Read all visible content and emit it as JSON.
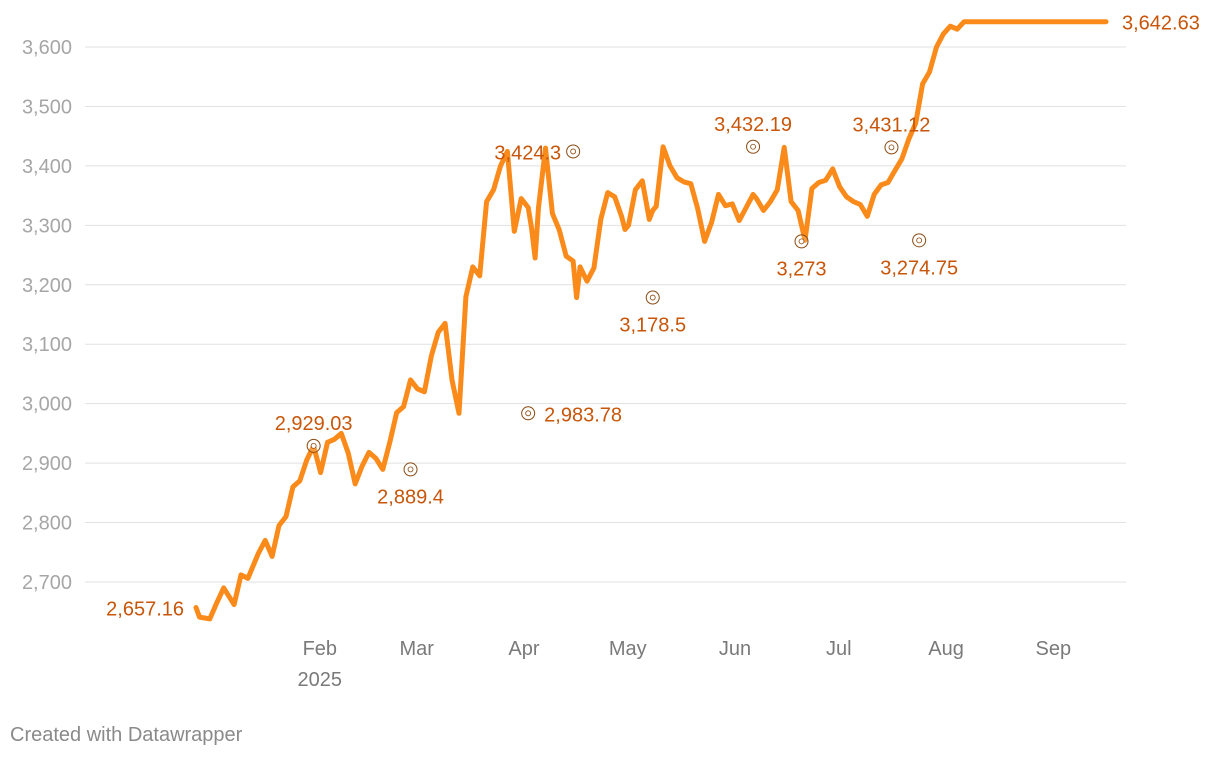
{
  "chart_data": {
    "type": "line",
    "title": "",
    "xlabel": "",
    "ylabel": "",
    "ylim": [
      2620,
      3660
    ],
    "grid": "horizontal",
    "line_color": "#fa8a1a",
    "annotation_color": "#c8560a",
    "y_ticks": [
      2700,
      2800,
      2900,
      3000,
      3100,
      3200,
      3300,
      3400,
      3500,
      3600
    ],
    "y_tick_labels": [
      "2,700",
      "2,800",
      "2,900",
      "3,000",
      "3,100",
      "3,200",
      "3,300",
      "3,400",
      "3,500",
      "3,600"
    ],
    "x_ticks": [
      {
        "date": "2025-02-01",
        "label": "Feb",
        "sublabel": "2025"
      },
      {
        "date": "2025-03-01",
        "label": "Mar",
        "sublabel": ""
      },
      {
        "date": "2025-04-01",
        "label": "Apr",
        "sublabel": ""
      },
      {
        "date": "2025-05-01",
        "label": "May",
        "sublabel": ""
      },
      {
        "date": "2025-06-01",
        "label": "Jun",
        "sublabel": ""
      },
      {
        "date": "2025-07-01",
        "label": "Jul",
        "sublabel": ""
      },
      {
        "date": "2025-08-01",
        "label": "Aug",
        "sublabel": ""
      },
      {
        "date": "2025-09-01",
        "label": "Sep",
        "sublabel": ""
      }
    ],
    "x_range": [
      "2025-01-02",
      "2025-09-22"
    ],
    "series": [
      {
        "x": [
          "2025-01-02",
          "2025-01-03",
          "2025-01-06",
          "2025-01-08",
          "2025-01-10",
          "2025-01-13",
          "2025-01-15",
          "2025-01-17",
          "2025-01-20",
          "2025-01-22",
          "2025-01-24",
          "2025-01-26",
          "2025-01-28",
          "2025-01-30",
          "2025-02-01",
          "2025-02-03",
          "2025-02-05",
          "2025-02-07",
          "2025-02-09",
          "2025-02-11",
          "2025-02-13",
          "2025-02-15",
          "2025-02-17",
          "2025-02-19",
          "2025-02-21",
          "2025-02-23",
          "2025-02-25",
          "2025-02-27",
          "2025-03-01",
          "2025-03-03",
          "2025-03-05",
          "2025-03-07",
          "2025-03-09",
          "2025-03-11",
          "2025-03-13",
          "2025-03-15",
          "2025-03-17",
          "2025-03-19",
          "2025-03-21",
          "2025-03-23",
          "2025-03-25",
          "2025-03-27",
          "2025-03-29",
          "2025-03-31",
          "2025-04-02",
          "2025-04-04",
          "2025-04-06",
          "2025-04-08",
          "2025-04-09",
          "2025-04-10",
          "2025-04-11",
          "2025-04-13",
          "2025-04-15",
          "2025-04-17",
          "2025-04-19",
          "2025-04-21",
          "2025-04-22",
          "2025-04-23",
          "2025-04-25",
          "2025-04-27",
          "2025-04-29",
          "2025-05-01",
          "2025-05-03",
          "2025-05-05",
          "2025-05-06",
          "2025-05-07",
          "2025-05-09",
          "2025-05-11",
          "2025-05-13",
          "2025-05-14",
          "2025-05-15",
          "2025-05-17",
          "2025-05-19",
          "2025-05-21",
          "2025-05-23",
          "2025-05-25",
          "2025-05-27",
          "2025-05-29",
          "2025-05-31",
          "2025-06-02",
          "2025-06-04",
          "2025-06-06",
          "2025-06-08",
          "2025-06-10",
          "2025-06-12",
          "2025-06-13",
          "2025-06-15",
          "2025-06-17",
          "2025-06-19",
          "2025-06-21",
          "2025-06-23",
          "2025-06-25",
          "2025-06-27",
          "2025-06-29",
          "2025-07-01",
          "2025-07-03",
          "2025-07-05",
          "2025-07-07",
          "2025-07-09",
          "2025-07-11",
          "2025-07-13",
          "2025-07-15",
          "2025-07-17",
          "2025-07-19",
          "2025-07-21",
          "2025-07-23",
          "2025-07-25",
          "2025-07-27",
          "2025-07-29",
          "2025-07-31",
          "2025-08-02",
          "2025-08-04",
          "2025-08-06",
          "2025-08-08",
          "2025-08-10",
          "2025-08-12",
          "2025-08-14",
          "2025-08-16",
          "2025-08-18",
          "2025-08-20",
          "2025-08-22",
          "2025-08-24",
          "2025-08-26",
          "2025-08-28",
          "2025-08-30",
          "2025-09-01",
          "2025-09-03",
          "2025-09-05",
          "2025-09-07",
          "2025-09-09",
          "2025-09-11",
          "2025-09-13",
          "2025-09-15",
          "2025-09-17",
          "2025-09-19",
          "2025-09-21",
          "2025-09-22"
        ],
        "y": [
          2657.16,
          2641,
          2638,
          2665,
          2690,
          2662,
          2712,
          2706,
          2748,
          2770,
          2743,
          2795,
          2810,
          2860,
          2870,
          2905,
          2929.03,
          2884,
          2935,
          2940,
          2950,
          2917,
          2865,
          2895,
          2918,
          2908,
          2889.4,
          2935,
          2985,
          2995,
          3040,
          3025,
          3020,
          3080,
          3120,
          3135,
          3040,
          2983.78,
          3180,
          3230,
          3215,
          3340,
          3360,
          3400,
          3424.3,
          3290,
          3345,
          3330,
          3295,
          3245,
          3330,
          3430,
          3320,
          3292,
          3248,
          3240,
          3178.5,
          3230,
          3206,
          3228,
          3310,
          3355,
          3348,
          3315,
          3293,
          3300,
          3360,
          3375,
          3310,
          3325,
          3332,
          3432.19,
          3400,
          3380,
          3373,
          3370,
          3328,
          3273,
          3305,
          3352,
          3333,
          3336,
          3308,
          3330,
          3352,
          3345,
          3325,
          3340,
          3360,
          3431.12,
          3340,
          3325,
          3274.75,
          3362,
          3372,
          3376,
          3395,
          3365,
          3348,
          3340,
          3335,
          3315,
          3352,
          3368,
          3372,
          3392,
          3412,
          3445,
          3472,
          3538,
          3558,
          3600,
          3622,
          3635,
          3630,
          3642.63,
          3642.63,
          3642.63,
          3642.63,
          3642.63,
          3642.63,
          3642.63,
          3642.63,
          3642.63,
          3642.63,
          3642.63,
          3642.63,
          3642.63,
          3642.63,
          3642.63,
          3642.63,
          3642.63,
          3642.63,
          3642.63,
          3642.63,
          3642.63,
          3642.63
        ]
      }
    ],
    "annotations": [
      {
        "date": "2025-01-02",
        "value": 2657.16,
        "label": "2,657.16",
        "marker": false,
        "pos": "left"
      },
      {
        "date": "2025-02-05",
        "value": 2929.03,
        "label": "2,929.03",
        "marker": true,
        "pos": "above"
      },
      {
        "date": "2025-03-05",
        "value": 2889.4,
        "label": "2,889.4",
        "marker": true,
        "pos": "below"
      },
      {
        "date": "2025-04-08",
        "value": 2983.78,
        "label": "2,983.78",
        "marker": true,
        "pos": "right"
      },
      {
        "date": "2025-04-21",
        "value": 3424.3,
        "label": "3,424.3",
        "marker": true,
        "pos": "left"
      },
      {
        "date": "2025-05-14",
        "value": 3178.5,
        "label": "3,178.5",
        "marker": true,
        "pos": "below"
      },
      {
        "date": "2025-06-12",
        "value": 3432.19,
        "label": "3,432.19",
        "marker": true,
        "pos": "above"
      },
      {
        "date": "2025-06-26",
        "value": 3273,
        "label": "3,273",
        "marker": true,
        "pos": "below"
      },
      {
        "date": "2025-07-22",
        "value": 3431.12,
        "label": "3,431.12",
        "marker": true,
        "pos": "above"
      },
      {
        "date": "2025-07-30",
        "value": 3274.75,
        "label": "3,274.75",
        "marker": true,
        "pos": "below"
      },
      {
        "date": "2025-09-22",
        "value": 3642.63,
        "label": "3,642.63",
        "marker": false,
        "pos": "right"
      }
    ]
  },
  "footer": {
    "credit": "Created with Datawrapper"
  }
}
